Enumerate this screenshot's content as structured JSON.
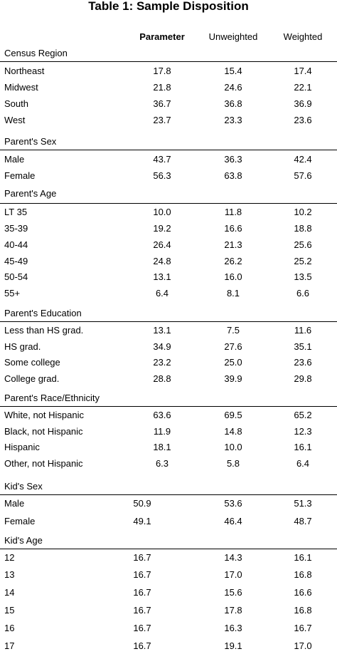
{
  "title": "Table 1: Sample Disposition",
  "columns": {
    "parameter": "Parameter",
    "unweighted": "Unweighted",
    "weighted": "Weighted"
  },
  "sections": [
    {
      "label": "Census Region",
      "rows": [
        {
          "label": "Northeast",
          "parameter": "17.8",
          "unweighted": "15.4",
          "weighted": "17.4"
        },
        {
          "label": "Midwest",
          "parameter": "21.8",
          "unweighted": "24.6",
          "weighted": "22.1"
        },
        {
          "label": "South",
          "parameter": "36.7",
          "unweighted": "36.8",
          "weighted": "36.9"
        },
        {
          "label": "West",
          "parameter": "23.7",
          "unweighted": "23.3",
          "weighted": "23.6"
        }
      ]
    },
    {
      "label": "Parent's Sex",
      "rows": [
        {
          "label": "Male",
          "parameter": "43.7",
          "unweighted": "36.3",
          "weighted": "42.4"
        },
        {
          "label": "Female",
          "parameter": "56.3",
          "unweighted": "63.8",
          "weighted": "57.6"
        }
      ]
    },
    {
      "label": "Parent's Age",
      "rows": [
        {
          "label": "LT 35",
          "parameter": "10.0",
          "unweighted": "11.8",
          "weighted": "10.2"
        },
        {
          "label": "35-39",
          "parameter": "19.2",
          "unweighted": "16.6",
          "weighted": "18.8"
        },
        {
          "label": "40-44",
          "parameter": "26.4",
          "unweighted": "21.3",
          "weighted": "25.6"
        },
        {
          "label": "45-49",
          "parameter": "24.8",
          "unweighted": "26.2",
          "weighted": "25.2"
        },
        {
          "label": "50-54",
          "parameter": "13.1",
          "unweighted": "16.0",
          "weighted": "13.5"
        },
        {
          "label": "55+",
          "parameter": "6.4",
          "unweighted": "8.1",
          "weighted": "6.6"
        }
      ]
    },
    {
      "label": "Parent's Education",
      "rows": [
        {
          "label": "Less than HS grad.",
          "parameter": "13.1",
          "unweighted": "7.5",
          "weighted": "11.6"
        },
        {
          "label": "HS grad.",
          "parameter": "34.9",
          "unweighted": "27.6",
          "weighted": "35.1"
        },
        {
          "label": "Some college",
          "parameter": "23.2",
          "unweighted": "25.0",
          "weighted": "23.6"
        },
        {
          "label": "College grad.",
          "parameter": "28.8",
          "unweighted": "39.9",
          "weighted": "29.8"
        }
      ]
    },
    {
      "label": "Parent's Race/Ethnicity",
      "rows": [
        {
          "label": "White, not Hispanic",
          "parameter": "63.6",
          "unweighted": "69.5",
          "weighted": "65.2"
        },
        {
          "label": "Black, not Hispanic",
          "parameter": "11.9",
          "unweighted": "14.8",
          "weighted": "12.3"
        },
        {
          "label": "Hispanic",
          "parameter": "18.1",
          "unweighted": "10.0",
          "weighted": "16.1"
        },
        {
          "label": "Other, not Hispanic",
          "parameter": "6.3",
          "unweighted": "5.8",
          "weighted": "6.4"
        }
      ]
    },
    {
      "label": "Kid's Sex",
      "rows": [
        {
          "label": "Male",
          "parameter": "50.9",
          "unweighted": "53.6",
          "weighted": "51.3"
        },
        {
          "label": "Female",
          "parameter": "49.1",
          "unweighted": "46.4",
          "weighted": "48.7"
        }
      ]
    },
    {
      "label": "Kid's Age",
      "rows": [
        {
          "label": "12",
          "parameter": "16.7",
          "unweighted": "14.3",
          "weighted": "16.1"
        },
        {
          "label": "13",
          "parameter": "16.7",
          "unweighted": "17.0",
          "weighted": "16.8"
        },
        {
          "label": "14",
          "parameter": "16.7",
          "unweighted": "15.6",
          "weighted": "16.6"
        },
        {
          "label": "15",
          "parameter": "16.7",
          "unweighted": "17.8",
          "weighted": "16.8"
        },
        {
          "label": "16",
          "parameter": "16.7",
          "unweighted": "16.3",
          "weighted": "16.7"
        },
        {
          "label": "17",
          "parameter": "16.7",
          "unweighted": "19.1",
          "weighted": "17.0"
        }
      ]
    }
  ]
}
